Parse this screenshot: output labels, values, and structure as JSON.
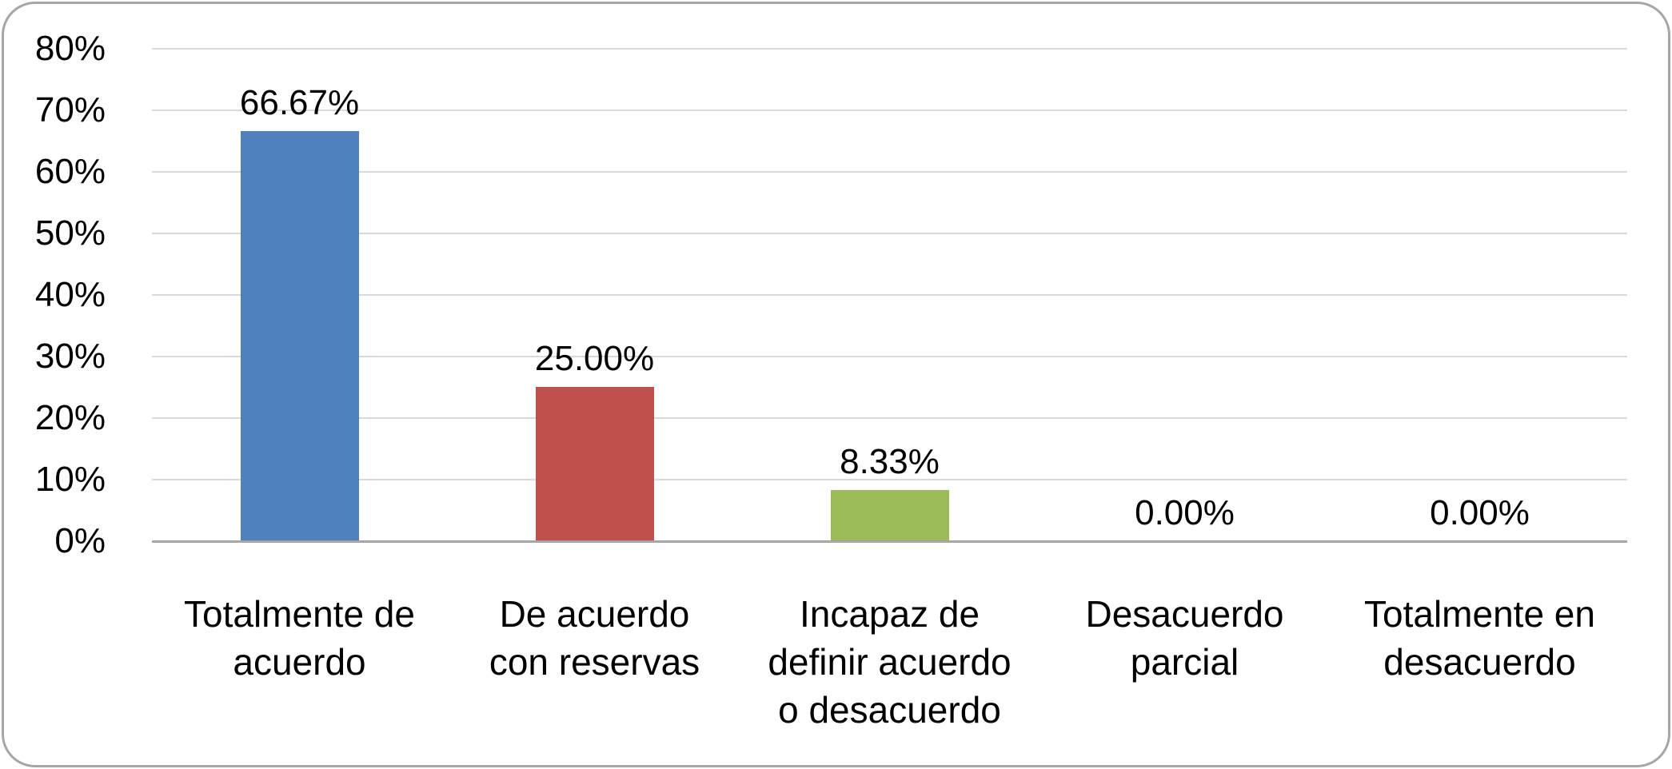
{
  "chart_data": {
    "type": "bar",
    "title": "",
    "xlabel": "",
    "ylabel": "",
    "categories": [
      "Totalmente de acuerdo",
      "De acuerdo con reservas",
      "Incapaz de definir acuerdo o desacuerdo",
      "Desacuerdo parcial",
      "Totalmente en desacuerdo"
    ],
    "category_lines": [
      [
        "Totalmente de",
        "acuerdo"
      ],
      [
        "De acuerdo",
        "con reservas"
      ],
      [
        "Incapaz de",
        "definir acuerdo",
        "o desacuerdo"
      ],
      [
        "Desacuerdo",
        "parcial"
      ],
      [
        "Totalmente en",
        "desacuerdo"
      ]
    ],
    "values": [
      66.67,
      25.0,
      8.33,
      0.0,
      0.0
    ],
    "value_labels": [
      "66.67%",
      "25.00%",
      "8.33%",
      "0.00%",
      "0.00%"
    ],
    "bar_colors": [
      "#4F81BD",
      "#C0504D",
      "#9BBB59",
      null,
      null
    ],
    "ylim": [
      0,
      80
    ],
    "ytick_values": [
      0,
      10,
      20,
      30,
      40,
      50,
      60,
      70,
      80
    ],
    "ytick_labels": [
      "0%",
      "10%",
      "20%",
      "30%",
      "40%",
      "50%",
      "60%",
      "70%",
      "80%"
    ],
    "grid": true,
    "legend": false
  },
  "colors": {
    "gridline": "#d9d9d9",
    "axis_line": "#a6a6a6",
    "frame_border": "#a6a6a6",
    "background": "#ffffff",
    "text": "#000000"
  }
}
